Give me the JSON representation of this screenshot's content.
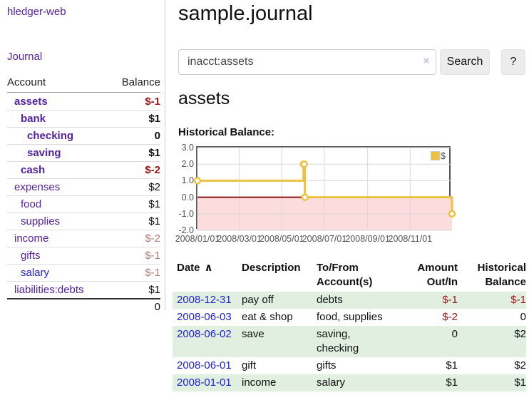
{
  "sidebar": {
    "brand": "hledger-web",
    "journal_link": "Journal",
    "table": {
      "account_header": "Account",
      "balance_header": "Balance",
      "rows": [
        {
          "account": "assets",
          "balance": "$-1",
          "indent": 1,
          "bold": true,
          "neg": "strong",
          "link": "purple"
        },
        {
          "account": "bank",
          "balance": "$1",
          "indent": 2,
          "bold": true,
          "neg": "none",
          "link": "purple"
        },
        {
          "account": "checking",
          "balance": "0",
          "indent": 3,
          "bold": true,
          "neg": "none",
          "link": "purple"
        },
        {
          "account": "saving",
          "balance": "$1",
          "indent": 3,
          "bold": true,
          "neg": "none",
          "link": "purple"
        },
        {
          "account": "cash",
          "balance": "$-2",
          "indent": 2,
          "bold": true,
          "neg": "strong",
          "link": "purple"
        },
        {
          "account": "expenses",
          "balance": "$2",
          "indent": 1,
          "bold": false,
          "neg": "none",
          "link": "purple"
        },
        {
          "account": "food",
          "balance": "$1",
          "indent": 2,
          "bold": false,
          "neg": "none",
          "link": "purple"
        },
        {
          "account": "supplies",
          "balance": "$1",
          "indent": 2,
          "bold": false,
          "neg": "none",
          "link": "purple"
        },
        {
          "account": "income",
          "balance": "$-2",
          "indent": 1,
          "bold": false,
          "neg": "muted",
          "link": "purple"
        },
        {
          "account": "gifts",
          "balance": "$-1",
          "indent": 2,
          "bold": false,
          "neg": "muted",
          "link": "purple"
        },
        {
          "account": "salary",
          "balance": "$-1",
          "indent": 2,
          "bold": false,
          "neg": "muted",
          "link": "blue"
        },
        {
          "account": "liabilities:debts",
          "balance": "$1",
          "indent": 1,
          "bold": false,
          "neg": "none",
          "link": "purple"
        }
      ],
      "total": "0"
    }
  },
  "header": {
    "title": "sample.journal"
  },
  "search": {
    "query": "inacct:assets",
    "clear_icon": "×",
    "button_label": "Search",
    "help_label": "?"
  },
  "account_page": {
    "title": "assets",
    "chart_label": "Historical Balance:"
  },
  "chart_data": {
    "type": "line",
    "step": true,
    "series": [
      {
        "name": "$",
        "points": [
          [
            "2008-01-01",
            1.0
          ],
          [
            "2008-06-01",
            2.0
          ],
          [
            "2008-06-02",
            2.0
          ],
          [
            "2008-06-03",
            0.0
          ],
          [
            "2008-12-31",
            -1.0
          ]
        ]
      }
    ],
    "xlim": [
      "2008-01-01",
      "2008-12-31"
    ],
    "ylim": [
      -2.0,
      3.0
    ],
    "yticks": [
      "3.0",
      "2.0",
      "1.0",
      "0.0",
      "-1.0",
      "-2.0"
    ],
    "xticks": [
      {
        "date": "2008-01-01",
        "label": "2008/01/01"
      },
      {
        "date": "2008-03-01",
        "label": "2008/03/01"
      },
      {
        "date": "2008-05-01",
        "label": "2008/05/01"
      },
      {
        "date": "2008-07-01",
        "label": "2008/07/01"
      },
      {
        "date": "2008-09-01",
        "label": "2008/09/01"
      },
      {
        "date": "2008-11-01",
        "label": "2008/11/01"
      }
    ],
    "legend": [
      {
        "label": "$",
        "color": "#edc240"
      }
    ],
    "legend_position": "top-right",
    "grid": true,
    "line_color": "#edc240",
    "marker_fill": "#ffffff",
    "grid_color": "#d8d8d8",
    "zero_line_color": "#8b1717",
    "negative_region_fill": "#fcdcdc",
    "border_color": "#545454"
  },
  "register": {
    "headers": {
      "date": "Date",
      "sort_icon": "∧",
      "description": "Description",
      "tofrom": [
        "To/From",
        "Account(s)"
      ],
      "amount": [
        "Amount",
        "Out/In"
      ],
      "historical": [
        "Historical",
        "Balance"
      ]
    },
    "rows": [
      {
        "date": "2008-12-31",
        "description": "pay off",
        "accounts": "debts",
        "amount": "$-1",
        "amount_neg": true,
        "balance": "$-1",
        "balance_neg": true
      },
      {
        "date": "2008-06-03",
        "description": "eat & shop",
        "accounts": "food, supplies",
        "amount": "$-2",
        "amount_neg": true,
        "balance": "0",
        "balance_neg": false
      },
      {
        "date": "2008-06-02",
        "description": "save",
        "accounts": "saving,\nchecking",
        "amount": "0",
        "amount_neg": false,
        "balance": "$2",
        "balance_neg": false
      },
      {
        "date": "2008-06-01",
        "description": "gift",
        "accounts": "gifts",
        "amount": "$1",
        "amount_neg": false,
        "balance": "$2",
        "balance_neg": false
      },
      {
        "date": "2008-01-01",
        "description": "income",
        "accounts": "salary",
        "amount": "$1",
        "amount_neg": false,
        "balance": "$1",
        "balance_neg": false
      }
    ]
  },
  "colors": {
    "link_purple": "#5522a0",
    "link_blue": "#2222cc",
    "negative_strong": "#a01515",
    "negative_muted": "#b87878",
    "row_stripe_green": "#e0efe0",
    "accent_gold": "#edc240"
  }
}
